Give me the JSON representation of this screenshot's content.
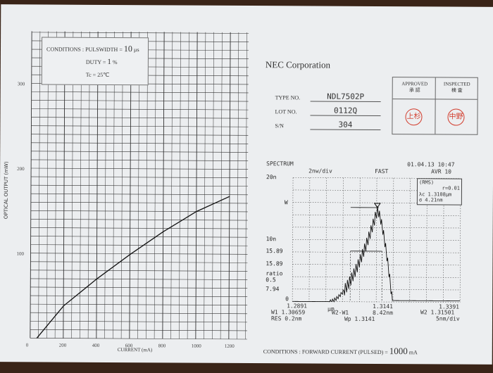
{
  "left_chart": {
    "conditions": {
      "label": "CONDITIONS : PULSWIDTH =",
      "pulse_width": "10",
      "pulse_unit": "µs",
      "duty_label": "DUTY =",
      "duty": "1",
      "duty_unit": "%",
      "tc": "Tc = 25℃"
    },
    "ylabel": "OPTICAL OUTPUT (mW)",
    "xlabel": "CURRENT (mA)",
    "yticks": [
      "100",
      "200",
      "300"
    ],
    "xticks": [
      "0",
      "200",
      "400",
      "600",
      "800",
      "1000",
      "1200"
    ]
  },
  "chart_data": {
    "type": "line",
    "xlabel": "CURRENT (mA)",
    "ylabel": "OPTICAL OUTPUT (mW)",
    "xlim": [
      0,
      1200
    ],
    "ylim": [
      0,
      300
    ],
    "grid": true,
    "x": [
      40,
      200,
      400,
      600,
      800,
      1000,
      1200
    ],
    "y": [
      0,
      38,
      70,
      99,
      126,
      150,
      168
    ]
  },
  "header": {
    "company": "NEC Corporation",
    "type_label": "TYPE NO.",
    "type_value": "NDL7502P",
    "lot_label": "LOT NO.",
    "lot_value": "0112Q",
    "sn_label": "S/N",
    "sn_value": "304",
    "approved": "APPROVED",
    "approved_jp": "承 認",
    "inspected": "INSPECTED",
    "inspected_jp": "検 査",
    "stamp1": "上杉",
    "stamp2": "中野"
  },
  "spectrum": {
    "title": "SPECTRUM",
    "datetime": "01.04.13 10:47",
    "scale": "2nw/div",
    "mode": "FAST",
    "avg": "AVR  10",
    "rms": "(RMS)",
    "r": "r=0.01",
    "lc": "λc 1.3108µm",
    "sigma": "σ    4.21nm",
    "ylabels": [
      "20n",
      "W",
      "10n",
      "15.89",
      "15.89",
      "ratio",
      "0.5",
      "7.94",
      "0"
    ],
    "start": "1.2891",
    "center": "1.3141",
    "stop": "1.3391",
    "unit": "µm",
    "w1": "W1 1.30659",
    "w2w1_label": "W2-W1",
    "w2w1": "8.42nm",
    "w2": "W2 1.31501",
    "res": "RES 0.2nm",
    "wp": "Wp 1.3141",
    "div": "5nm/div"
  },
  "footer": {
    "conditions": "CONDITIONS : FORWARD CURRENT (PULSED) =",
    "value": "1000",
    "unit": "mA"
  }
}
